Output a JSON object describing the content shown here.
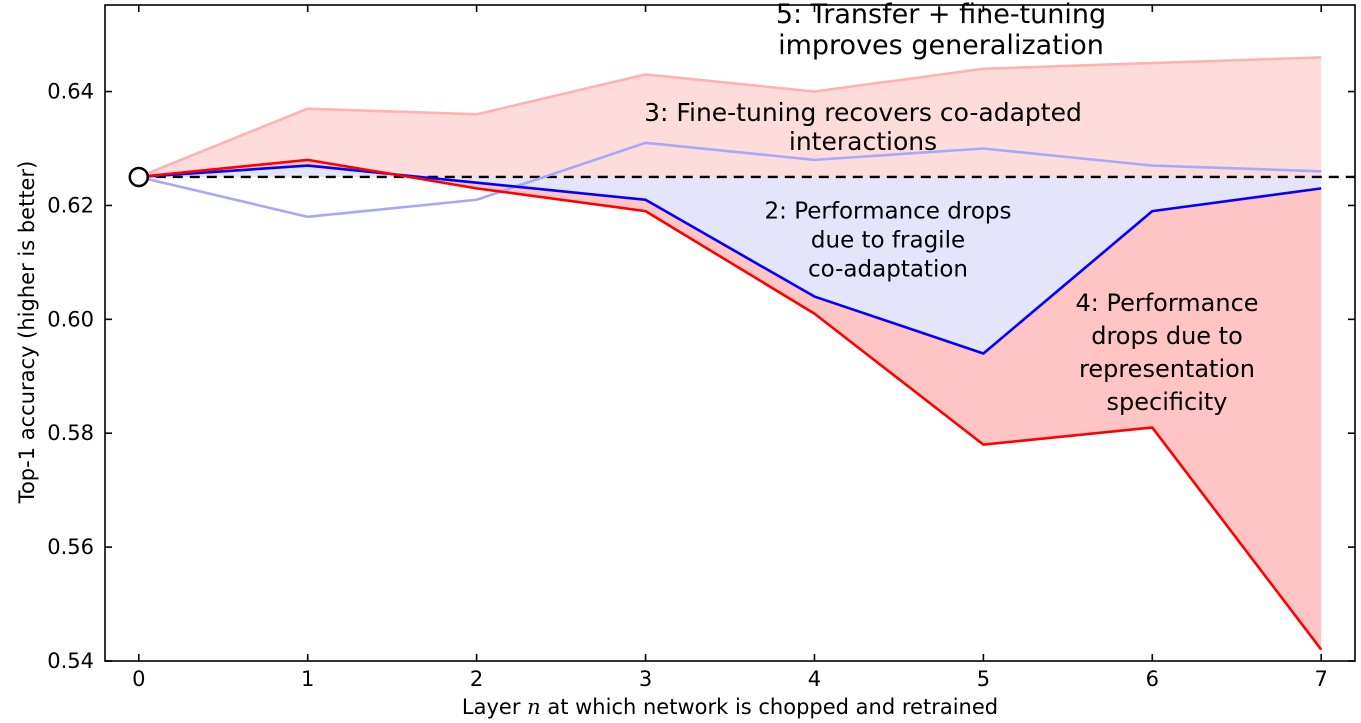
{
  "chart_data": {
    "type": "line",
    "title": "",
    "xlabel": {
      "pre": "Layer ",
      "var": "n",
      "post": " at which network is chopped and retrained"
    },
    "ylabel": "Top-1 accuracy (higher is better)",
    "xlim": [
      -0.2,
      7.2
    ],
    "ylim": [
      0.54,
      0.6552
    ],
    "grid": false,
    "xticks": [
      0,
      1,
      2,
      3,
      4,
      5,
      6,
      7
    ],
    "xtick_labels": [
      "0",
      "1",
      "2",
      "3",
      "4",
      "5",
      "6",
      "7"
    ],
    "ytick_values": [
      0.54,
      0.56,
      0.58,
      0.6,
      0.62,
      0.64
    ],
    "ytick_labels": [
      "0.54",
      "0.56",
      "0.58",
      "0.60",
      "0.62",
      "0.64"
    ],
    "baseline": {
      "value": 0.625,
      "color": "#000000",
      "style": "dashed"
    },
    "start_marker": {
      "x": 0,
      "y": 0.625,
      "shape": "open-circle",
      "color": "#000000",
      "fill": "#ffffff"
    },
    "x": [
      0,
      1,
      2,
      3,
      4,
      5,
      6,
      7
    ],
    "series": [
      {
        "id": "transfer-finetune",
        "label": "5: Transfer + fine-tuning improves generalization",
        "color": "#ffb2b2",
        "fill": "baseline",
        "fill_color": "#ffdcdc",
        "values": [
          0.625,
          0.637,
          0.636,
          0.643,
          0.64,
          0.644,
          0.645,
          0.646
        ]
      },
      {
        "id": "finetune-recovers",
        "label": "3: Fine-tuning recovers co-adapted interactions",
        "color": "#a8a8f8",
        "fill": "none",
        "fill_color": "",
        "values": [
          0.625,
          0.618,
          0.621,
          0.631,
          0.628,
          0.63,
          0.627,
          0.626
        ]
      },
      {
        "id": "fragile-coadaptation",
        "label": "2: Performance drops due to fragile co-adaptation",
        "color": "#0000ff",
        "fill": "baseline",
        "fill_color": "#e4e4fb",
        "values": [
          0.625,
          0.627,
          0.624,
          0.621,
          0.604,
          0.594,
          0.619,
          0.623
        ]
      },
      {
        "id": "representation-specificity",
        "label": "4: Performance drops due to representation specificity",
        "color": "#ff0000",
        "fill": "series:fragile-coadaptation",
        "fill_color": "#ffc4c4",
        "values": [
          0.625,
          0.628,
          0.623,
          0.619,
          0.601,
          0.578,
          0.581,
          0.542
        ]
      }
    ],
    "annotations": [
      {
        "id": "ann-5",
        "text": "5: Transfer + fine-tuning improves generalization"
      },
      {
        "id": "ann-3",
        "text": "3: Fine-tuning recovers co-adapted interactions"
      },
      {
        "id": "ann-2",
        "text": "2: Performance drops\ndue to fragile\nco-adaptation"
      },
      {
        "id": "ann-4",
        "text": "4: Performance\ndrops due to\nrepresentation\nspecificity"
      }
    ]
  }
}
